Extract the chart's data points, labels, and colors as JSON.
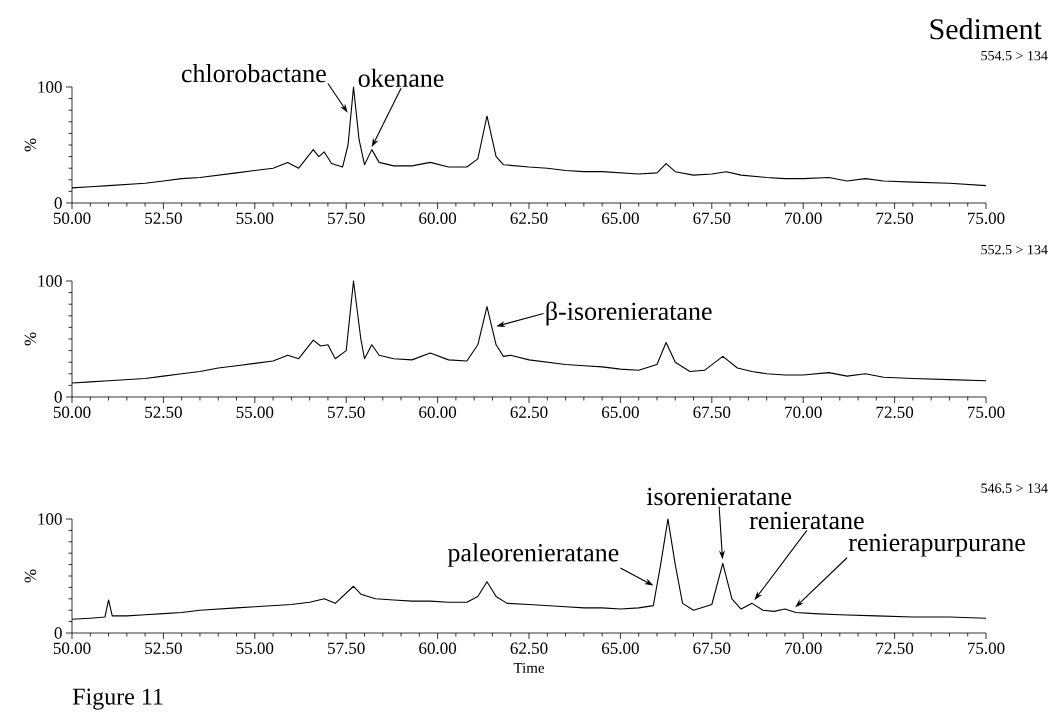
{
  "chart_data": [
    {
      "type": "line",
      "title": "Sediment",
      "ylabel": "%",
      "xlim": [
        50,
        75
      ],
      "ylim": [
        0,
        100
      ],
      "xticks": [
        {
          "value": 50,
          "label": "50.00"
        },
        {
          "value": 52.5,
          "label": "52.50"
        },
        {
          "value": 55,
          "label": "55.00"
        },
        {
          "value": 57.5,
          "label": "57.50"
        },
        {
          "value": 60,
          "label": "60.00"
        },
        {
          "value": 62.5,
          "label": "62.50"
        },
        {
          "value": 65,
          "label": "65.00"
        },
        {
          "value": 67.5,
          "label": "67.50"
        },
        {
          "value": 70,
          "label": "70.00"
        },
        {
          "value": 72.5,
          "label": "72.50"
        },
        {
          "value": 75,
          "label": "75.00"
        }
      ],
      "yticks": [
        0,
        100
      ],
      "color": "#000000",
      "x": [
        50,
        50.5,
        51,
        51.5,
        52,
        52.5,
        53,
        53.5,
        54,
        54.5,
        55,
        55.5,
        55.9,
        56.2,
        56.6,
        56.75,
        56.9,
        57.1,
        57.4,
        57.55,
        57.7,
        57.85,
        58.0,
        58.2,
        58.4,
        58.8,
        59.3,
        59.8,
        60.3,
        60.8,
        61.1,
        61.35,
        61.6,
        61.8,
        62.5,
        63.0,
        63.5,
        64,
        64.5,
        65,
        65.5,
        66.0,
        66.25,
        66.5,
        67,
        67.5,
        67.9,
        68.3,
        69,
        69.5,
        70,
        70.7,
        71.2,
        71.7,
        72.2,
        73,
        74,
        75
      ],
      "values": [
        13,
        14,
        15,
        16,
        17,
        19,
        21,
        22,
        24,
        26,
        28,
        30,
        35,
        30,
        46,
        40,
        44,
        34,
        31,
        50,
        100,
        55,
        33,
        46,
        35,
        32,
        32,
        35,
        31,
        31,
        38,
        75,
        40,
        33,
        31,
        30,
        28,
        27,
        27,
        26,
        25,
        26,
        34,
        27,
        24,
        25,
        27,
        24,
        22,
        21,
        21,
        22,
        19,
        21,
        19,
        18,
        17,
        15
      ],
      "annotations": [
        {
          "text": "chlorobactane",
          "x": 57.6,
          "y": 75
        },
        {
          "text": "okenane",
          "x": 58.15,
          "y": 45
        },
        "554.5 > 134"
      ]
    },
    {
      "type": "line",
      "ylabel": "%",
      "xlim": [
        50,
        75
      ],
      "ylim": [
        0,
        100
      ],
      "xticks": [
        {
          "value": 50,
          "label": "50.00"
        },
        {
          "value": 52.5,
          "label": "52.50"
        },
        {
          "value": 55,
          "label": "55.00"
        },
        {
          "value": 57.5,
          "label": "57.50"
        },
        {
          "value": 60,
          "label": "60.00"
        },
        {
          "value": 62.5,
          "label": "62.50"
        },
        {
          "value": 65,
          "label": "65.00"
        },
        {
          "value": 67.5,
          "label": "67.50"
        },
        {
          "value": 70,
          "label": "70.00"
        },
        {
          "value": 72.5,
          "label": "72.50"
        },
        {
          "value": 75,
          "label": "75.00"
        }
      ],
      "yticks": [
        0,
        100
      ],
      "color": "#000000",
      "x": [
        50,
        50.5,
        51,
        51.5,
        52,
        52.5,
        53,
        53.5,
        54,
        54.5,
        55,
        55.5,
        55.9,
        56.2,
        56.6,
        56.8,
        57.0,
        57.2,
        57.5,
        57.7,
        57.9,
        58.0,
        58.2,
        58.4,
        58.8,
        59.3,
        59.8,
        60.3,
        60.8,
        61.1,
        61.35,
        61.6,
        61.8,
        62.0,
        62.5,
        63,
        63.5,
        64,
        64.5,
        65,
        65.5,
        66.0,
        66.25,
        66.5,
        66.9,
        67.3,
        67.8,
        68.2,
        68.6,
        69,
        69.5,
        70,
        70.7,
        71.2,
        71.7,
        72.2,
        73,
        74,
        75
      ],
      "values": [
        12,
        13,
        14,
        15,
        16,
        18,
        20,
        22,
        25,
        27,
        29,
        31,
        36,
        33,
        49,
        44,
        45,
        33,
        40,
        100,
        50,
        33,
        45,
        36,
        33,
        32,
        38,
        32,
        31,
        45,
        78,
        45,
        35,
        36,
        32,
        30,
        28,
        27,
        26,
        24,
        23,
        28,
        47,
        30,
        22,
        23,
        35,
        25,
        22,
        20,
        19,
        19,
        21,
        18,
        20,
        17,
        16,
        15,
        14
      ],
      "annotations": [
        {
          "text": "β-isorenieratane",
          "x": 61.5,
          "y": 60
        },
        "552.5 > 134"
      ]
    },
    {
      "type": "line",
      "ylabel": "%",
      "xlabel": "Time",
      "xlim": [
        50,
        75
      ],
      "ylim": [
        0,
        100
      ],
      "xticks": [
        {
          "value": 50,
          "label": "50.00"
        },
        {
          "value": 52.5,
          "label": "52.50"
        },
        {
          "value": 55,
          "label": "55.00"
        },
        {
          "value": 57.5,
          "label": "57.50"
        },
        {
          "value": 60,
          "label": "60.00"
        },
        {
          "value": 62.5,
          "label": "62.50"
        },
        {
          "value": 65,
          "label": "65.00"
        },
        {
          "value": 67.5,
          "label": "67.50"
        },
        {
          "value": 70,
          "label": "70.00"
        },
        {
          "value": 72.5,
          "label": "72.50"
        },
        {
          "value": 75,
          "label": "75.00"
        }
      ],
      "yticks": [
        0,
        100
      ],
      "color": "#000000",
      "x": [
        50,
        50.5,
        50.9,
        51.0,
        51.1,
        51.5,
        52,
        52.5,
        53,
        53.5,
        54,
        54.5,
        55,
        55.5,
        56,
        56.5,
        56.9,
        57.2,
        57.7,
        57.9,
        58.3,
        58.8,
        59.3,
        59.8,
        60.3,
        60.8,
        61.1,
        61.35,
        61.6,
        61.9,
        62.5,
        63,
        63.5,
        64,
        64.5,
        65,
        65.5,
        65.9,
        66.1,
        66.3,
        66.5,
        66.7,
        67.0,
        67.5,
        67.8,
        68.05,
        68.3,
        68.6,
        68.9,
        69.2,
        69.5,
        69.8,
        70.3,
        71,
        72,
        73,
        74,
        75
      ],
      "values": [
        12,
        13,
        14,
        29,
        15,
        15,
        16,
        17,
        18,
        20,
        21,
        22,
        23,
        24,
        25,
        27,
        30,
        26,
        41,
        34,
        30,
        29,
        28,
        28,
        27,
        27,
        32,
        45,
        32,
        26,
        25,
        24,
        23,
        22,
        22,
        21,
        22,
        24,
        60,
        100,
        60,
        26,
        20,
        25,
        61,
        30,
        21,
        26,
        20,
        19,
        21,
        18,
        17,
        16,
        15,
        14,
        14,
        13
      ],
      "annotations": [
        {
          "text": "paleorenieratane",
          "x": 66.0,
          "y": 40
        },
        {
          "text": "isorenieratane",
          "x": 67.8,
          "y": 61
        },
        {
          "text": "renieratane",
          "x": 68.6,
          "y": 26
        },
        {
          "text": "renierapurpurane",
          "x": 69.7,
          "y": 20
        },
        "546.5 > 134",
        "Figure 11"
      ]
    }
  ]
}
